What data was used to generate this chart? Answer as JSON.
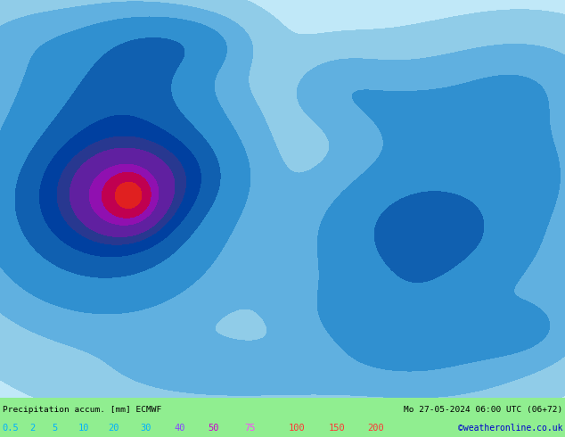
{
  "title_left": "Precipitation accum. [mm] ECMWF",
  "title_right": "Mo 27-05-2024 06:00 UTC (06+72)",
  "credit": "©weatheronline.co.uk",
  "colorbar_values": [
    "0.5",
    "2",
    "5",
    "10",
    "20",
    "30",
    "40",
    "50",
    "75",
    "100",
    "150",
    "200"
  ],
  "colorbar_text_colors": [
    "#00b0ff",
    "#00b0ff",
    "#00b0ff",
    "#00b0ff",
    "#00b0ff",
    "#00b0ff",
    "#8844ff",
    "#cc00cc",
    "#ff44ff",
    "#ff3333",
    "#ff3333",
    "#ff3333"
  ],
  "bottom_bar_color": "#90ee90",
  "fig_width": 6.34,
  "fig_height": 4.9,
  "dpi": 100,
  "map_colors": {
    "sea_light": "#a8d8f0",
    "sea_med": "#78b8e8",
    "land_gray": "#d8d8d8",
    "land_green": "#c8d870",
    "precip_light1": "#c0e8ff",
    "precip_light2": "#90ccf0",
    "precip_med1": "#60a8e0",
    "precip_med2": "#3080c0",
    "precip_dark1": "#1050a0",
    "precip_dark2": "#203880",
    "precip_purple": "#6020a0",
    "precip_darkblue": "#102060"
  }
}
